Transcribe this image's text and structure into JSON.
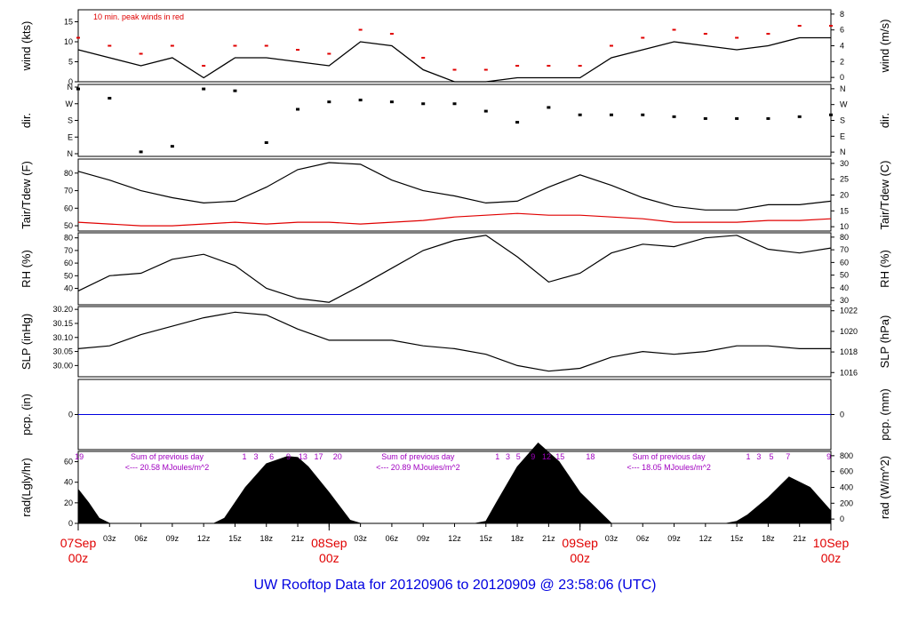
{
  "footer_title": "UW Rooftop Data for 20120906  to  20120909 @ 23:58:06  (UTC)",
  "colors": {
    "data": "#000000",
    "red": "#e00000",
    "blue": "#0000e0",
    "purple": "#a000c0"
  },
  "x_axis": {
    "hour_ticks": [
      "03z",
      "06z",
      "09z",
      "12z",
      "15z",
      "18z",
      "21z",
      "",
      "03z",
      "06z",
      "09z",
      "12z",
      "15z",
      "18z",
      "21z",
      "",
      "03z",
      "06z",
      "09z",
      "12z",
      "15z",
      "18z",
      "21z"
    ],
    "date_labels": [
      {
        "date": "07Sep",
        "hour": "00z"
      },
      {
        "date": "08Sep",
        "hour": "00z"
      },
      {
        "date": "09Sep",
        "hour": "00z"
      },
      {
        "date": "10Sep",
        "hour": "00z"
      }
    ]
  },
  "chart_data": [
    {
      "type": "line",
      "panel": "wind",
      "ylabel_left": "wind (kts)",
      "ylabel_right": "wind (m/s)",
      "left_ticks": [
        "0",
        "5",
        "10",
        "15"
      ],
      "right_ticks": [
        "0",
        "2",
        "4",
        "6",
        "8"
      ],
      "ylim": [
        0,
        18
      ],
      "note": "10 min. peak winds in red",
      "x_hours": [
        0,
        3,
        6,
        9,
        12,
        15,
        18,
        21,
        24,
        27,
        30,
        33,
        36,
        39,
        42,
        45,
        48,
        51,
        54,
        57,
        60,
        63,
        66,
        69,
        72
      ],
      "values": [
        8,
        6,
        4,
        6,
        1,
        6,
        6,
        5,
        4,
        10,
        9,
        3,
        0,
        0,
        1,
        1,
        1,
        6,
        8,
        10,
        9,
        8,
        9,
        11,
        11
      ]
    },
    {
      "type": "scatter",
      "panel": "direction",
      "ylabel_left": "dir.",
      "ylabel_right": "dir.",
      "left_ticks": [
        "N",
        "E",
        "S",
        "W",
        "N"
      ],
      "right_ticks": [
        "N",
        "E",
        "S",
        "W",
        "N"
      ],
      "ylim": [
        0,
        360
      ],
      "x_hours": [
        0,
        3,
        6,
        9,
        12,
        15,
        18,
        21,
        24,
        27,
        30,
        33,
        36,
        39,
        42,
        45,
        48,
        51,
        54,
        57,
        60,
        63,
        66,
        69,
        72
      ],
      "values": [
        350,
        300,
        10,
        40,
        350,
        340,
        60,
        240,
        280,
        290,
        280,
        270,
        270,
        230,
        170,
        250,
        210,
        210,
        210,
        200,
        190,
        190,
        190,
        200,
        210
      ]
    },
    {
      "type": "line",
      "panel": "temperature",
      "ylabel_left": "Tair/Tdew (F)",
      "ylabel_right": "Tair/Tdew (C)",
      "left_ticks": [
        "50",
        "60",
        "70",
        "80"
      ],
      "right_ticks": [
        "10",
        "15",
        "20",
        "25",
        "30"
      ],
      "ylim": [
        47,
        88
      ],
      "x_hours": [
        0,
        3,
        6,
        9,
        12,
        15,
        18,
        21,
        24,
        27,
        30,
        33,
        36,
        39,
        42,
        45,
        48,
        51,
        54,
        57,
        60,
        63,
        66,
        69,
        72
      ],
      "series": [
        {
          "values": [
            81,
            76,
            70,
            66,
            63,
            64,
            72,
            82,
            86,
            85,
            76,
            70,
            67,
            63,
            64,
            72,
            79,
            73,
            66,
            61,
            59,
            59,
            62,
            62,
            64
          ]
        },
        {
          "values": [
            52,
            51,
            50,
            50,
            51,
            52,
            51,
            52,
            52,
            51,
            52,
            53,
            55,
            56,
            57,
            56,
            56,
            55,
            54,
            52,
            52,
            52,
            53,
            53,
            54
          ]
        }
      ]
    },
    {
      "type": "line",
      "panel": "humidity",
      "ylabel_left": "RH (%)",
      "ylabel_right": "RH (%)",
      "left_ticks": [
        "40",
        "50",
        "60",
        "70",
        "80"
      ],
      "right_ticks": [
        "30",
        "40",
        "50",
        "60",
        "70",
        "80"
      ],
      "ylim": [
        27,
        84
      ],
      "x_hours": [
        0,
        3,
        6,
        9,
        12,
        15,
        18,
        21,
        24,
        27,
        30,
        33,
        36,
        39,
        42,
        45,
        48,
        51,
        54,
        57,
        60,
        63,
        66,
        69,
        72
      ],
      "values": [
        38,
        50,
        52,
        63,
        67,
        58,
        40,
        32,
        29,
        42,
        56,
        70,
        78,
        82,
        65,
        45,
        52,
        68,
        75,
        73,
        80,
        82,
        71,
        68,
        72
      ]
    },
    {
      "type": "line",
      "panel": "pressure",
      "ylabel_left": "SLP (inHg)",
      "ylabel_right": "SLP (hPa)",
      "left_ticks": [
        "30.00",
        "30.05",
        "30.10",
        "30.15",
        "30.20"
      ],
      "right_ticks": [
        "1016",
        "1018",
        "1020",
        "1022"
      ],
      "ylim": [
        29.96,
        30.21
      ],
      "x_hours": [
        0,
        3,
        6,
        9,
        12,
        15,
        18,
        21,
        24,
        27,
        30,
        33,
        36,
        39,
        42,
        45,
        48,
        51,
        54,
        57,
        60,
        63,
        66,
        69,
        72
      ],
      "values": [
        30.06,
        30.07,
        30.11,
        30.14,
        30.17,
        30.19,
        30.18,
        30.13,
        30.09,
        30.09,
        30.09,
        30.07,
        30.06,
        30.04,
        30.0,
        29.98,
        29.99,
        30.03,
        30.05,
        30.04,
        30.05,
        30.07,
        30.07,
        30.06,
        30.06
      ]
    },
    {
      "type": "line",
      "panel": "precipitation",
      "ylabel_left": "pcp. (in)",
      "ylabel_right": "pcp. (mm)",
      "left_ticks": [
        "0"
      ],
      "right_ticks": [
        "0"
      ],
      "ylim": [
        -1,
        1
      ],
      "x_hours": [
        0,
        72
      ],
      "values": [
        0,
        0
      ]
    },
    {
      "type": "area",
      "panel": "radiation",
      "ylabel_left": "rad(Lgly/hr)",
      "ylabel_right": "rad (W/m^2)",
      "left_ticks": [
        "0",
        "20",
        "40",
        "60"
      ],
      "right_ticks": [
        "0",
        "200",
        "400",
        "600",
        "800"
      ],
      "ylim": [
        0,
        70
      ],
      "top_ticks": [
        {
          "label": "19",
          "x_hour": 0.1
        },
        {
          "label": "1",
          "x_hour": 15.9
        },
        {
          "label": "3",
          "x_hour": 17.0
        },
        {
          "label": "6",
          "x_hour": 18.5
        },
        {
          "label": "9",
          "x_hour": 20.1
        },
        {
          "label": "13",
          "x_hour": 21.5
        },
        {
          "label": "17",
          "x_hour": 23.0
        },
        {
          "label": "20",
          "x_hour": 24.8
        },
        {
          "label": "1",
          "x_hour": 40.1
        },
        {
          "label": "3",
          "x_hour": 41.1
        },
        {
          "label": "5",
          "x_hour": 42.1
        },
        {
          "label": "9",
          "x_hour": 43.5
        },
        {
          "label": "12",
          "x_hour": 44.8
        },
        {
          "label": "15",
          "x_hour": 46.1
        },
        {
          "label": "18",
          "x_hour": 49.0
        },
        {
          "label": "1",
          "x_hour": 64.1
        },
        {
          "label": "3",
          "x_hour": 65.1
        },
        {
          "label": "5",
          "x_hour": 66.3
        },
        {
          "label": "7",
          "x_hour": 67.9
        },
        {
          "label": "9",
          "x_hour": 71.8
        }
      ],
      "sums": [
        {
          "title": "Sum of previous day",
          "value": "<--- 20.58 MJoules/m^2",
          "x_hour": 8.5
        },
        {
          "title": "Sum of previous day",
          "value": "<--- 20.89 MJoules/m^2",
          "x_hour": 32.5
        },
        {
          "title": "Sum of previous day",
          "value": "<--- 18.05 MJoules/m^2",
          "x_hour": 56.5
        }
      ],
      "x_hours": [
        0,
        1,
        2,
        3,
        13,
        14,
        16,
        18,
        20,
        21,
        22,
        24,
        26,
        27,
        38,
        39,
        40,
        42,
        44,
        46,
        48,
        51,
        62,
        63,
        64,
        66,
        68,
        70,
        72
      ],
      "values": [
        33,
        20,
        5,
        0,
        0,
        5,
        35,
        58,
        65,
        64,
        55,
        30,
        3,
        0,
        0,
        2,
        20,
        55,
        78,
        60,
        30,
        0,
        0,
        2,
        8,
        25,
        45,
        35,
        12
      ]
    }
  ]
}
